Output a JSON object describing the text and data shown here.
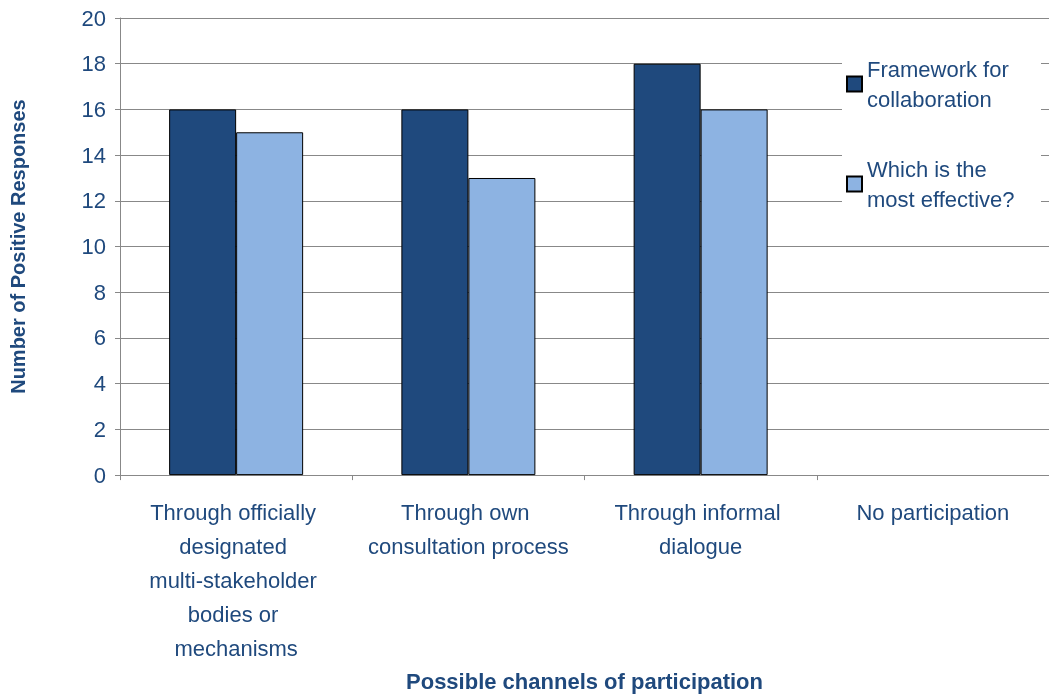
{
  "chart_data": {
    "type": "bar",
    "xlabel": "Possible channels of participation",
    "ylabel": "Number of Positive Responses",
    "categories": [
      "Through officially designated multi-stakeholder bodies or mechanisms",
      "Through own consultation process",
      "Through informal dialogue",
      "No participation"
    ],
    "series": [
      {
        "name": "Framework for collaboration",
        "color": "#1f497d",
        "values": [
          16,
          16,
          18,
          0
        ]
      },
      {
        "name": "Which is the most effective?",
        "color": "#8db3e2",
        "values": [
          15,
          13,
          16,
          0
        ]
      }
    ],
    "ylim": [
      0,
      20
    ],
    "yticks": [
      0,
      2,
      4,
      6,
      8,
      10,
      12,
      14,
      16,
      18,
      20
    ],
    "grid": "y",
    "legend": "top right"
  }
}
